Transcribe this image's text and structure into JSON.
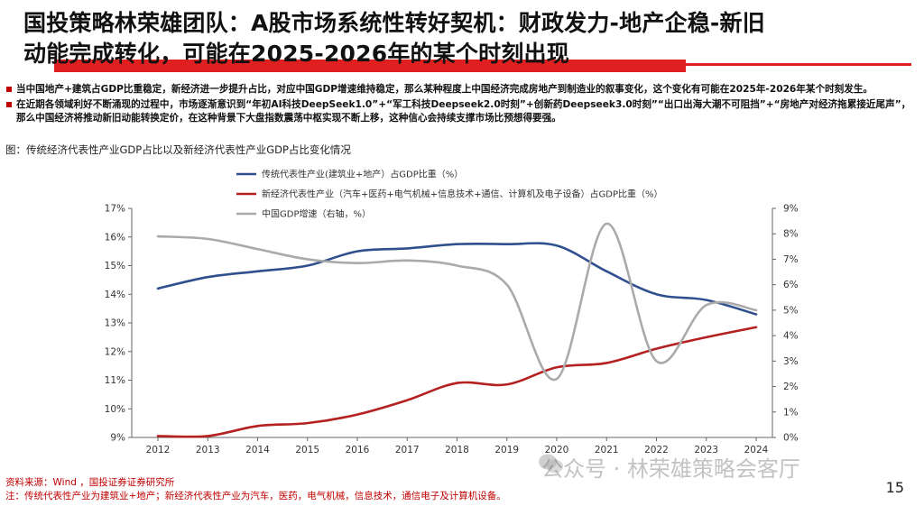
{
  "title": {
    "line1": "国投策略林荣雄团队：A股市场系统性转好契机：财政发力-地产企稳-新旧",
    "line2": "动能完成转化，可能在2025-2026年的某个时刻出现"
  },
  "bullets": [
    "当中国地产+建筑占GDP比重稳定，新经济进一步提升占比，对应中国GDP增速维持稳定，那么某种程度上中国经济完成房地产到制造业的叙事变化，这个变化有可能在2025年-2026年某个时刻发生。",
    "在近期各领域利好不断涌现的过程中，市场逐渐意识到“年初AI科技DeepSeek1.0”+“军工科技Deepseek2.0时刻”+创新药Deepseek3.0时刻”“出口出海大潮不可阻挡”+“房地产对经济拖累接近尾声”，那么中国经济将推动新旧动能转换定价，在这种背景下大盘指数震荡中枢实现不断上移，这种信心会持续支撑市场比预想得要强。"
  ],
  "figure_caption": "图：传统经济代表性产业GDP占比以及新经济代表性产业GDP占比变化情况",
  "chart_data": {
    "type": "line",
    "x": [
      2012,
      2013,
      2014,
      2015,
      2016,
      2017,
      2018,
      2019,
      2020,
      2021,
      2022,
      2023,
      2024
    ],
    "x_tick_labels": [
      "2012",
      "2013",
      "2014",
      "2015",
      "2016",
      "2017",
      "2018",
      "2019",
      "2020",
      "2021",
      "2022",
      "2023",
      "2024"
    ],
    "y_left": {
      "range": [
        9,
        17
      ],
      "ticks": [
        "9%",
        "10%",
        "11%",
        "12%",
        "13%",
        "14%",
        "15%",
        "16%",
        "17%"
      ]
    },
    "y_right": {
      "range": [
        0,
        9
      ],
      "ticks": [
        "0%",
        "1%",
        "2%",
        "3%",
        "4%",
        "5%",
        "6%",
        "7%",
        "8%",
        "9%"
      ]
    },
    "grid": false,
    "legend_position": "top-center",
    "series": [
      {
        "name": "传统代表性产业(建筑业+地产）占GDP比重（%）",
        "axis": "left",
        "color": "#2f4f8f",
        "values": [
          14.2,
          14.6,
          14.8,
          15.0,
          15.5,
          15.6,
          15.75,
          15.75,
          15.7,
          14.8,
          14.0,
          13.8,
          13.3
        ]
      },
      {
        "name": "新经济代表性产业（汽车+医药+电气机械+信息技术+通信、计算机及电子设备）占GDP比重（%）",
        "axis": "left",
        "color": "#b52020",
        "values": [
          9.05,
          9.05,
          9.4,
          9.5,
          9.8,
          10.3,
          10.9,
          10.85,
          11.45,
          11.6,
          12.1,
          12.5,
          12.85
        ]
      },
      {
        "name": "中国GDP增速（右轴，%）",
        "axis": "right",
        "color": "#aaaaaa",
        "values": [
          7.9,
          7.8,
          7.4,
          7.0,
          6.85,
          6.95,
          6.75,
          6.0,
          2.3,
          8.4,
          3.0,
          5.2,
          5.0
        ]
      }
    ]
  },
  "footer": {
    "source": "资料来源：Wind ，国投证券证券研究所",
    "note": "注：传统代表性产业为建筑业+地产；新经济代表性产业为汽车，医药，电气机械，信息技术，通信电子及计算机设备。"
  },
  "watermark": "公众号 · 林荣雄策略会客厅",
  "page_number": "15",
  "icons": {
    "watermark": "wechat-icon",
    "bullet": "square-bullet-icon"
  }
}
